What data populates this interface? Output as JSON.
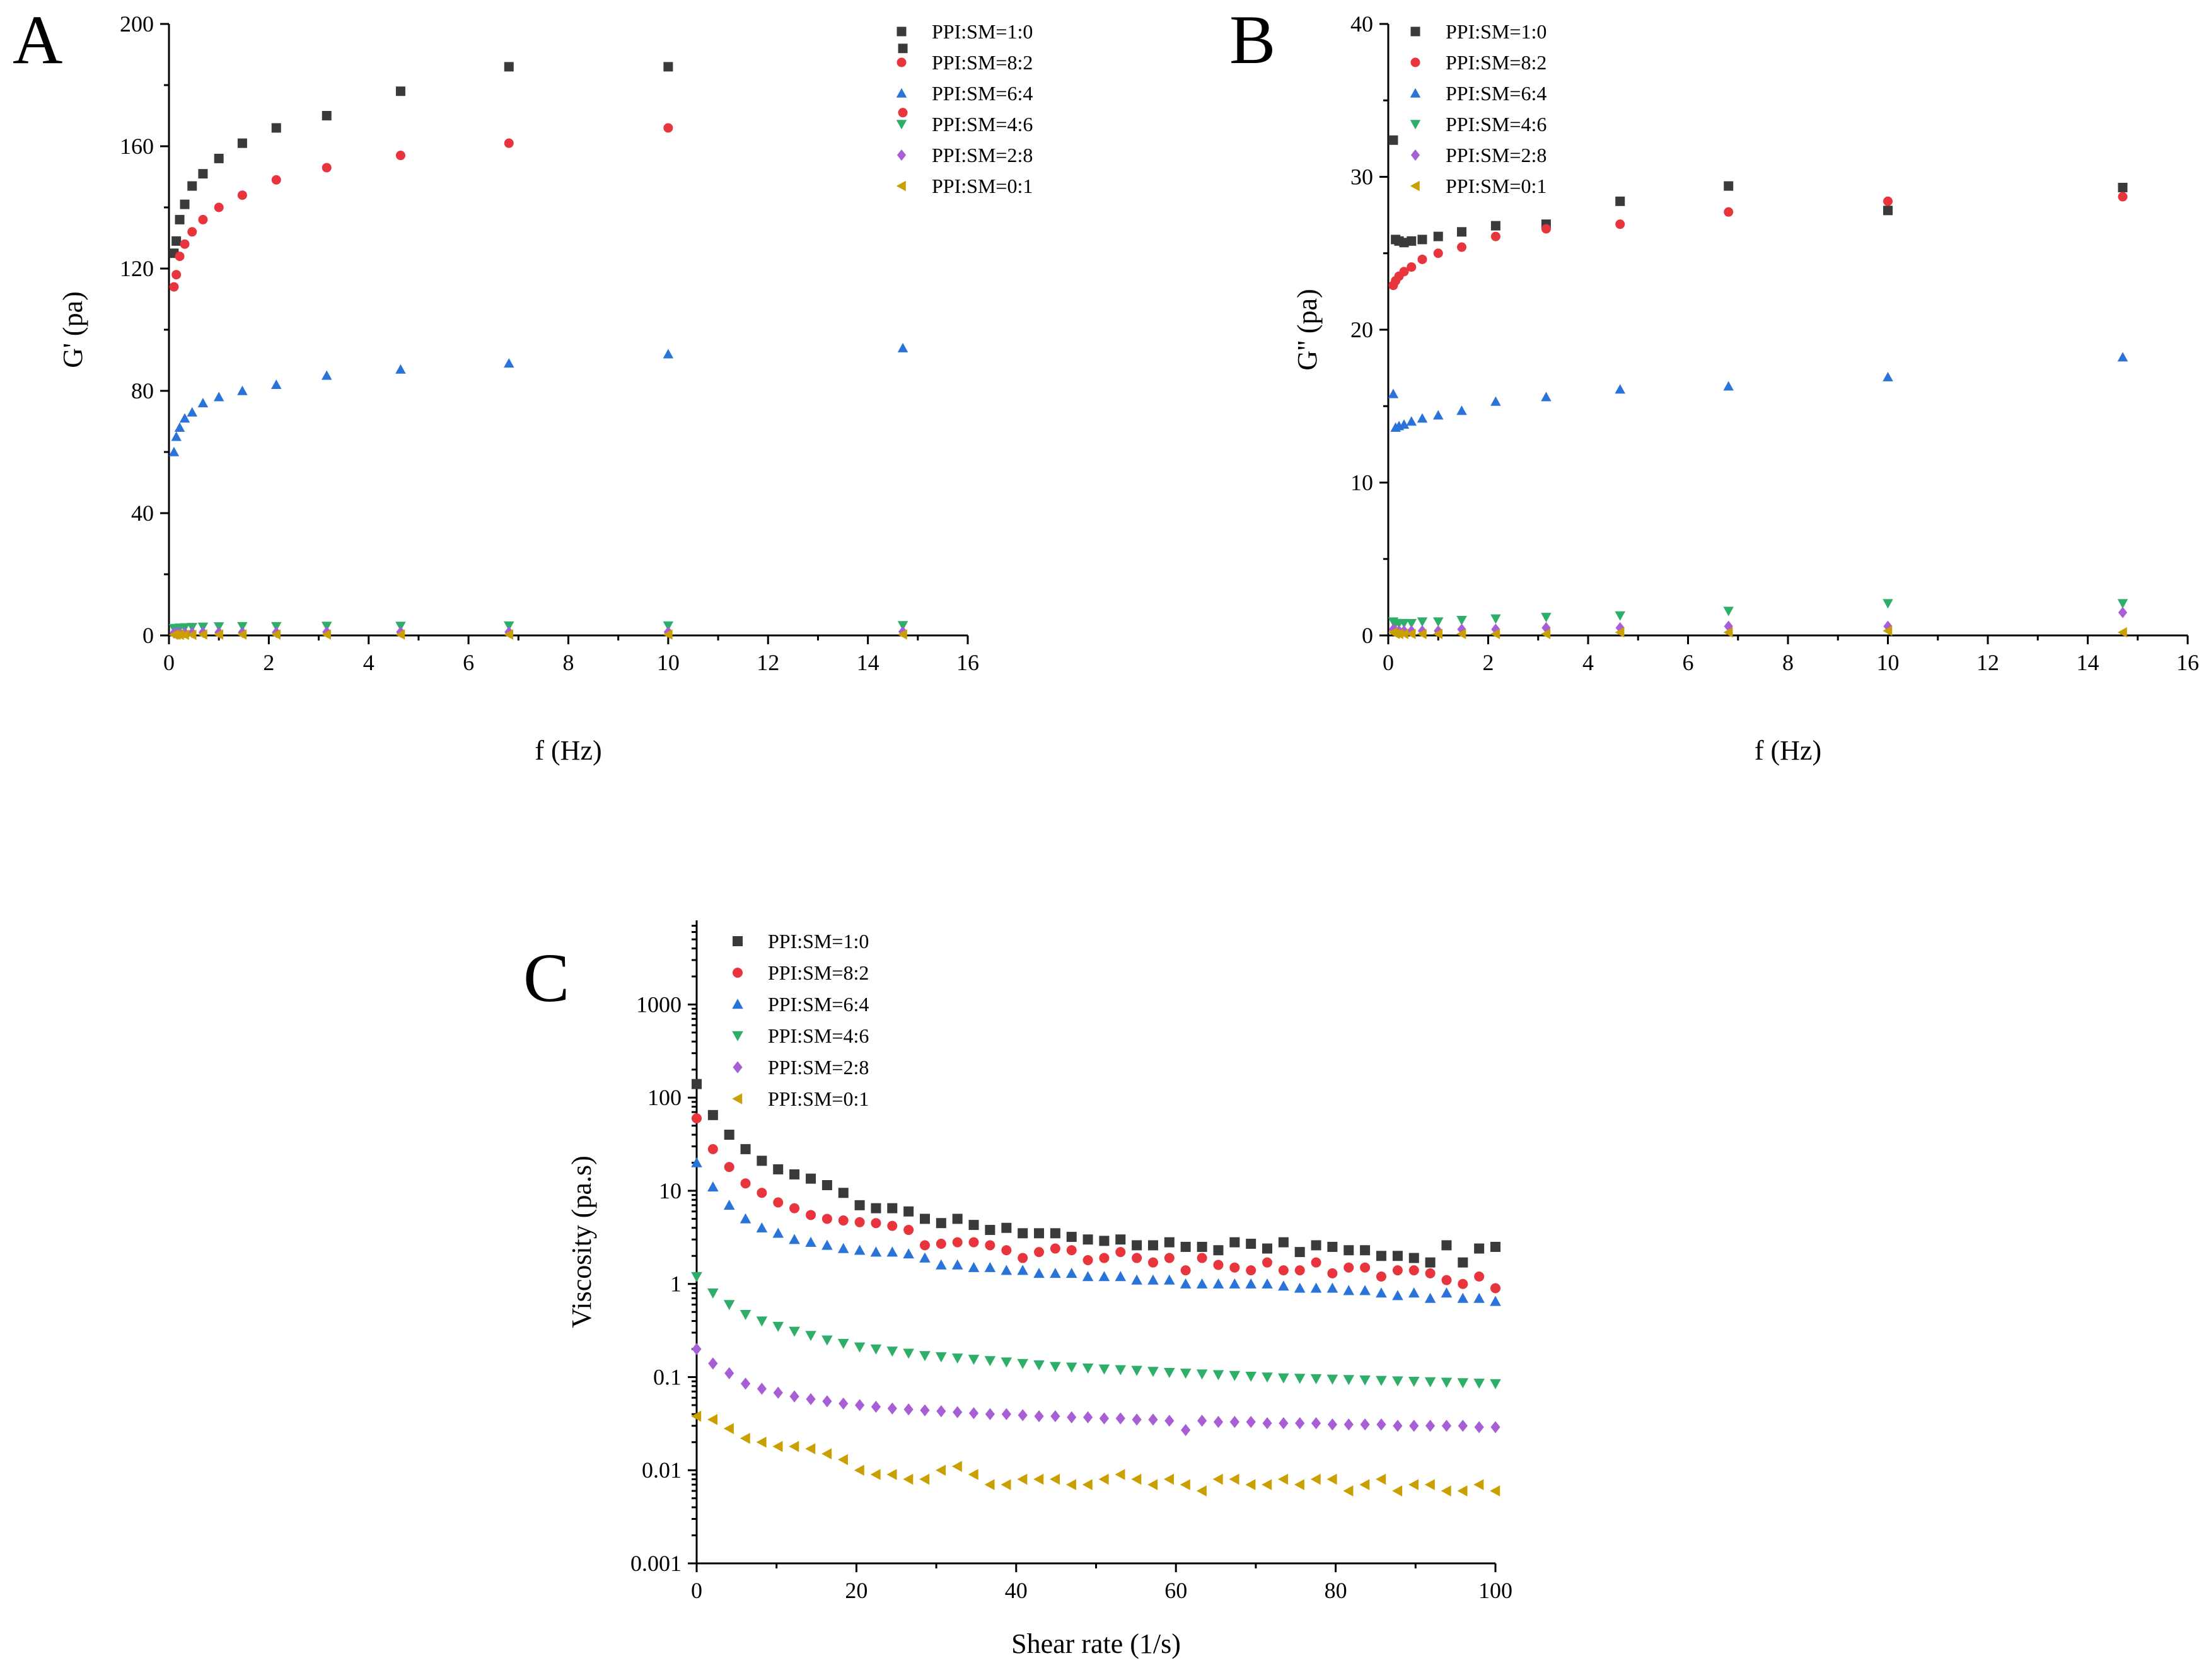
{
  "figure": {
    "series_styles": [
      {
        "name": "PPI:SM=1:0",
        "marker": "square",
        "color": "#3a3a3a"
      },
      {
        "name": "PPI:SM=8:2",
        "marker": "circle",
        "color": "#e8343c"
      },
      {
        "name": "PPI:SM=6:4",
        "marker": "triangle-up",
        "color": "#2a73d9"
      },
      {
        "name": "PPI:SM=4:6",
        "marker": "triangle-down",
        "color": "#2fae6a"
      },
      {
        "name": "PPI:SM=2:8",
        "marker": "diamond",
        "color": "#a85fd6"
      },
      {
        "name": "PPI:SM=0:1",
        "marker": "triangle-left",
        "color": "#c9a000"
      }
    ]
  },
  "chart_data": [
    {
      "panel": "A",
      "type": "scatter",
      "xlabel": "f (Hz)",
      "ylabel": "G' (pa)",
      "xlim": [
        0,
        16
      ],
      "ylim": [
        0,
        200
      ],
      "xticks": [
        0,
        2,
        4,
        6,
        8,
        10,
        12,
        14,
        16
      ],
      "yticks": [
        0,
        40,
        80,
        120,
        160,
        200
      ],
      "yscale": "linear",
      "legend_position": "top-right",
      "x": [
        0.1,
        0.147,
        0.215,
        0.316,
        0.464,
        0.681,
        1.0,
        1.47,
        2.15,
        3.16,
        4.64,
        6.81,
        10.0,
        14.7
      ],
      "series": [
        {
          "name": "PPI:SM=1:0",
          "values": [
            125,
            129,
            136,
            141,
            147,
            151,
            156,
            161,
            166,
            170,
            178,
            186,
            186,
            192
          ]
        },
        {
          "name": "PPI:SM=8:2",
          "values": [
            114,
            118,
            124,
            128,
            132,
            136,
            140,
            144,
            149,
            153,
            157,
            161,
            166,
            171
          ]
        },
        {
          "name": "PPI:SM=6:4",
          "values": [
            60,
            65,
            68,
            71,
            73,
            76,
            78,
            80,
            82,
            85,
            87,
            89,
            92,
            94
          ]
        },
        {
          "name": "PPI:SM=4:6",
          "values": [
            2.3,
            2.4,
            2.5,
            2.6,
            2.7,
            2.8,
            2.9,
            3.0,
            3.0,
            3.1,
            3.1,
            3.2,
            3.2,
            3.3
          ]
        },
        {
          "name": "PPI:SM=2:8",
          "values": [
            0.8,
            0.8,
            0.9,
            0.9,
            0.9,
            1.0,
            1.0,
            1.0,
            1.0,
            1.1,
            1.1,
            1.1,
            1.1,
            1.2
          ]
        },
        {
          "name": "PPI:SM=0:1",
          "values": [
            0.2,
            0.2,
            0.2,
            0.2,
            0.2,
            0.3,
            0.3,
            0.3,
            0.3,
            0.3,
            0.3,
            0.3,
            0.3,
            0.3
          ]
        }
      ]
    },
    {
      "panel": "B",
      "type": "scatter",
      "xlabel": "f (Hz)",
      "ylabel": "G'' (pa)",
      "xlim": [
        0,
        16
      ],
      "ylim": [
        0,
        40
      ],
      "xticks": [
        0,
        2,
        4,
        6,
        8,
        10,
        12,
        14,
        16
      ],
      "yticks": [
        0,
        10,
        20,
        30,
        40
      ],
      "yscale": "linear",
      "legend_position": "top-right",
      "x": [
        0.1,
        0.147,
        0.215,
        0.316,
        0.464,
        0.681,
        1.0,
        1.47,
        2.15,
        3.16,
        4.64,
        6.81,
        10.0,
        14.7
      ],
      "series": [
        {
          "name": "PPI:SM=1:0",
          "values": [
            32.4,
            25.9,
            25.8,
            25.7,
            25.8,
            25.9,
            26.1,
            26.4,
            26.8,
            26.9,
            28.4,
            29.4,
            27.8,
            29.3
          ]
        },
        {
          "name": "PPI:SM=8:2",
          "values": [
            22.9,
            23.2,
            23.5,
            23.8,
            24.1,
            24.6,
            25.0,
            25.4,
            26.1,
            26.6,
            26.9,
            27.7,
            28.4,
            28.7
          ]
        },
        {
          "name": "PPI:SM=6:4",
          "values": [
            15.8,
            13.6,
            13.7,
            13.8,
            14.0,
            14.2,
            14.4,
            14.7,
            15.3,
            15.6,
            16.1,
            16.3,
            16.9,
            18.2
          ]
        },
        {
          "name": "PPI:SM=4:6",
          "values": [
            0.9,
            0.8,
            0.8,
            0.8,
            0.8,
            0.9,
            0.9,
            1.0,
            1.1,
            1.2,
            1.3,
            1.6,
            2.1,
            2.1
          ]
        },
        {
          "name": "PPI:SM=2:8",
          "values": [
            0.4,
            0.3,
            0.3,
            0.3,
            0.3,
            0.3,
            0.3,
            0.4,
            0.4,
            0.5,
            0.5,
            0.6,
            0.6,
            1.5
          ]
        },
        {
          "name": "PPI:SM=0:1",
          "values": [
            0.2,
            0.1,
            0.1,
            0.1,
            0.1,
            0.1,
            0.1,
            0.1,
            0.1,
            0.1,
            0.2,
            0.2,
            0.3,
            0.2
          ]
        }
      ]
    },
    {
      "panel": "C",
      "type": "scatter",
      "xlabel": "Shear rate (1/s)",
      "ylabel": "Viscosity (pa.s)",
      "xlim": [
        0,
        100
      ],
      "ylim": [
        0.001,
        8000
      ],
      "xticks": [
        0,
        20,
        40,
        60,
        80,
        100
      ],
      "yticks": [
        0.001,
        0.01,
        0.1,
        1,
        10,
        100,
        1000
      ],
      "ytick_labels": [
        "0.001",
        "0.01",
        "0.1",
        "1",
        "10",
        "100",
        "1000"
      ],
      "yscale": "log",
      "legend_position": "top-left",
      "x": [
        0,
        2.04,
        4.08,
        6.12,
        8.16,
        10.2,
        12.24,
        14.29,
        16.33,
        18.37,
        20.41,
        22.45,
        24.49,
        26.53,
        28.57,
        30.61,
        32.65,
        34.69,
        36.73,
        38.78,
        40.82,
        42.86,
        44.9,
        46.94,
        48.98,
        51.02,
        53.06,
        55.1,
        57.14,
        59.18,
        61.22,
        63.27,
        65.31,
        67.35,
        69.39,
        71.43,
        73.47,
        75.51,
        77.55,
        79.59,
        81.63,
        83.67,
        85.71,
        87.76,
        89.8,
        91.84,
        93.88,
        95.92,
        97.96,
        100
      ],
      "series": [
        {
          "name": "PPI:SM=1:0",
          "values": [
            140,
            65,
            40,
            28,
            21,
            17,
            15,
            13.5,
            11.5,
            9.5,
            7,
            6.5,
            6.5,
            6,
            5,
            4.5,
            5,
            4.3,
            3.8,
            4,
            3.5,
            3.5,
            3.5,
            3.2,
            3,
            2.9,
            3,
            2.6,
            2.6,
            2.8,
            2.5,
            2.5,
            2.3,
            2.8,
            2.7,
            2.4,
            2.8,
            2.2,
            2.6,
            2.5,
            2.3,
            2.3,
            2.0,
            2.0,
            1.9,
            1.7,
            2.6,
            1.7,
            2.4,
            2.5
          ]
        },
        {
          "name": "PPI:SM=8:2",
          "values": [
            60,
            28,
            18,
            12,
            9.5,
            7.5,
            6.5,
            5.5,
            5,
            4.8,
            4.6,
            4.5,
            4.2,
            3.8,
            2.6,
            2.7,
            2.8,
            2.8,
            2.6,
            2.3,
            1.9,
            2.2,
            2.4,
            2.3,
            1.8,
            1.9,
            2.2,
            1.9,
            1.7,
            1.9,
            1.4,
            1.9,
            1.6,
            1.5,
            1.4,
            1.7,
            1.4,
            1.4,
            1.7,
            1.3,
            1.5,
            1.5,
            1.2,
            1.4,
            1.4,
            1.3,
            1.1,
            1.0,
            1.2,
            0.9
          ]
        },
        {
          "name": "PPI:SM=6:4",
          "values": [
            20,
            11,
            7,
            5,
            4,
            3.5,
            3,
            2.8,
            2.6,
            2.4,
            2.3,
            2.2,
            2.2,
            2.1,
            1.9,
            1.6,
            1.6,
            1.5,
            1.5,
            1.4,
            1.4,
            1.3,
            1.3,
            1.3,
            1.2,
            1.2,
            1.2,
            1.1,
            1.1,
            1.1,
            1.0,
            1.0,
            1.0,
            1.0,
            1.0,
            1.0,
            0.95,
            0.9,
            0.9,
            0.9,
            0.85,
            0.85,
            0.8,
            0.75,
            0.8,
            0.7,
            0.8,
            0.7,
            0.7,
            0.65
          ]
        },
        {
          "name": "PPI:SM=4:6",
          "values": [
            1.2,
            0.8,
            0.6,
            0.47,
            0.4,
            0.35,
            0.31,
            0.28,
            0.25,
            0.23,
            0.21,
            0.2,
            0.19,
            0.18,
            0.17,
            0.165,
            0.16,
            0.155,
            0.15,
            0.145,
            0.14,
            0.135,
            0.13,
            0.128,
            0.125,
            0.122,
            0.12,
            0.118,
            0.115,
            0.112,
            0.11,
            0.108,
            0.106,
            0.104,
            0.102,
            0.1,
            0.098,
            0.097,
            0.096,
            0.095,
            0.094,
            0.093,
            0.092,
            0.091,
            0.09,
            0.089,
            0.088,
            0.087,
            0.086,
            0.085
          ]
        },
        {
          "name": "PPI:SM=2:8",
          "values": [
            0.2,
            0.14,
            0.11,
            0.085,
            0.075,
            0.068,
            0.062,
            0.058,
            0.055,
            0.052,
            0.05,
            0.048,
            0.046,
            0.045,
            0.044,
            0.043,
            0.042,
            0.041,
            0.04,
            0.04,
            0.039,
            0.038,
            0.038,
            0.037,
            0.037,
            0.036,
            0.036,
            0.035,
            0.035,
            0.034,
            0.027,
            0.034,
            0.033,
            0.033,
            0.033,
            0.032,
            0.032,
            0.032,
            0.032,
            0.031,
            0.031,
            0.031,
            0.031,
            0.03,
            0.03,
            0.03,
            0.03,
            0.03,
            0.029,
            0.029
          ]
        },
        {
          "name": "PPI:SM=0:1",
          "values": [
            0.038,
            0.035,
            0.028,
            0.022,
            0.02,
            0.018,
            0.018,
            0.017,
            0.015,
            0.013,
            0.01,
            0.009,
            0.009,
            0.008,
            0.008,
            0.01,
            0.011,
            0.009,
            0.007,
            0.007,
            0.008,
            0.008,
            0.008,
            0.007,
            0.007,
            0.008,
            0.009,
            0.008,
            0.007,
            0.008,
            0.007,
            0.006,
            0.008,
            0.008,
            0.007,
            0.007,
            0.008,
            0.007,
            0.008,
            0.008,
            0.006,
            0.007,
            0.008,
            0.006,
            0.007,
            0.007,
            0.006,
            0.006,
            0.007,
            0.006
          ]
        }
      ]
    }
  ]
}
